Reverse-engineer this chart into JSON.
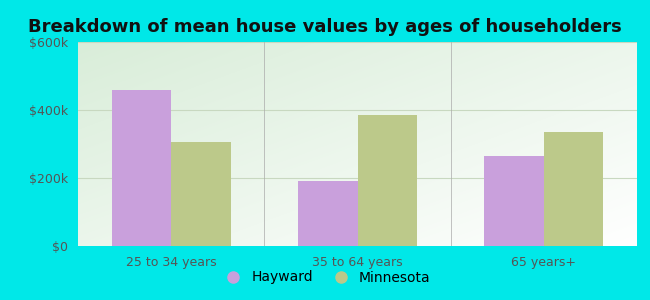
{
  "title": "Breakdown of mean house values by ages of householders",
  "categories": [
    "25 to 34 years",
    "35 to 64 years",
    "65 years+"
  ],
  "hayward_values": [
    460000,
    190000,
    265000
  ],
  "minnesota_values": [
    305000,
    385000,
    335000
  ],
  "hayward_color": "#c9a0dc",
  "minnesota_color": "#bcc98a",
  "background_outer": "#00e8e8",
  "ylim": [
    0,
    600000
  ],
  "yticks": [
    0,
    200000,
    400000,
    600000
  ],
  "ytick_labels": [
    "$0",
    "$200k",
    "$400k",
    "$600k"
  ],
  "legend_labels": [
    "Hayward",
    "Minnesota"
  ],
  "bar_width": 0.32,
  "title_fontsize": 13,
  "tick_fontsize": 9,
  "legend_fontsize": 10,
  "grid_color": "#d8e8d0",
  "inner_bg_top": "#d8edd8",
  "inner_bg_bottom": "#f0fbf0"
}
